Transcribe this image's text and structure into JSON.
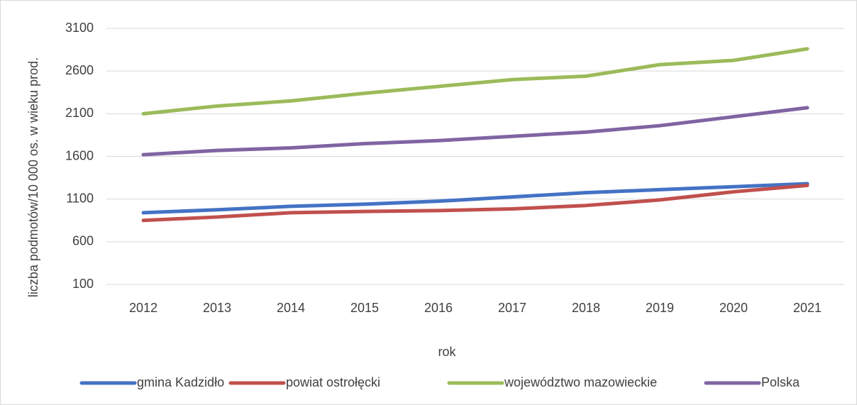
{
  "chart_data": {
    "type": "line",
    "x_label": "rok",
    "y_label": "liczba podmotów/10 000 os. w wieku prod.",
    "categories": [
      "2012",
      "2013",
      "2014",
      "2015",
      "2016",
      "2017",
      "2018",
      "2019",
      "2020",
      "2021"
    ],
    "series": [
      {
        "name": "gmina Kadzidło",
        "color": "#4472c4",
        "values": [
          940,
          975,
          1015,
          1040,
          1075,
          1125,
          1175,
          1210,
          1245,
          1280
        ]
      },
      {
        "name": "powiat ostrołęcki",
        "color": "#c0504d",
        "values": [
          850,
          890,
          940,
          955,
          965,
          985,
          1025,
          1090,
          1185,
          1260
        ]
      },
      {
        "name": "województwo mazowieckie",
        "color": "#9bbb59",
        "values": [
          2100,
          2190,
          2250,
          2340,
          2420,
          2500,
          2540,
          2675,
          2725,
          2860
        ]
      },
      {
        "name": "Polska",
        "color": "#8064a2",
        "values": [
          1620,
          1670,
          1700,
          1750,
          1785,
          1835,
          1885,
          1960,
          2065,
          2170
        ]
      }
    ],
    "ylim": [
      100,
      3100
    ],
    "yticks": [
      100,
      600,
      1100,
      1600,
      2100,
      2600,
      3100
    ],
    "grid": true,
    "legend": "bottom"
  }
}
